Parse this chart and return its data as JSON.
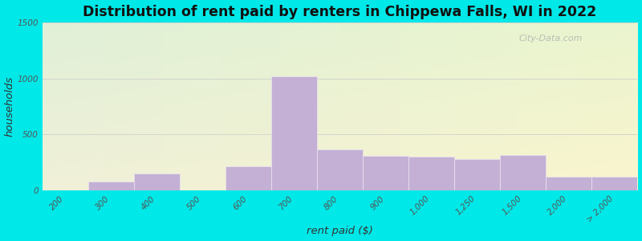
{
  "title": "Distribution of rent paid by renters in Chippewa Falls, WI in 2022",
  "xlabel": "rent paid ($)",
  "ylabel": "households",
  "tick_labels": [
    "200",
    "300",
    "400",
    "500",
    "600",
    "700",
    "800",
    "900",
    "1,000",
    "1,250",
    "1,500",
    "2,000",
    "> 2,000"
  ],
  "values": [
    0,
    80,
    155,
    0,
    220,
    1020,
    370,
    310,
    300,
    280,
    320,
    120,
    120
  ],
  "bar_color": "#c4b0d4",
  "bar_edge_color": "#e8e0f0",
  "ylim": [
    0,
    1500
  ],
  "yticks": [
    0,
    500,
    1000,
    1500
  ],
  "background_outer": "#00e8e8",
  "bg_color_top": "#e0f0d8",
  "bg_color_bottom": "#f0f0dc",
  "title_fontsize": 12.5,
  "axis_label_fontsize": 9.5,
  "tick_fontsize": 7.5,
  "watermark": "City-Data.com"
}
